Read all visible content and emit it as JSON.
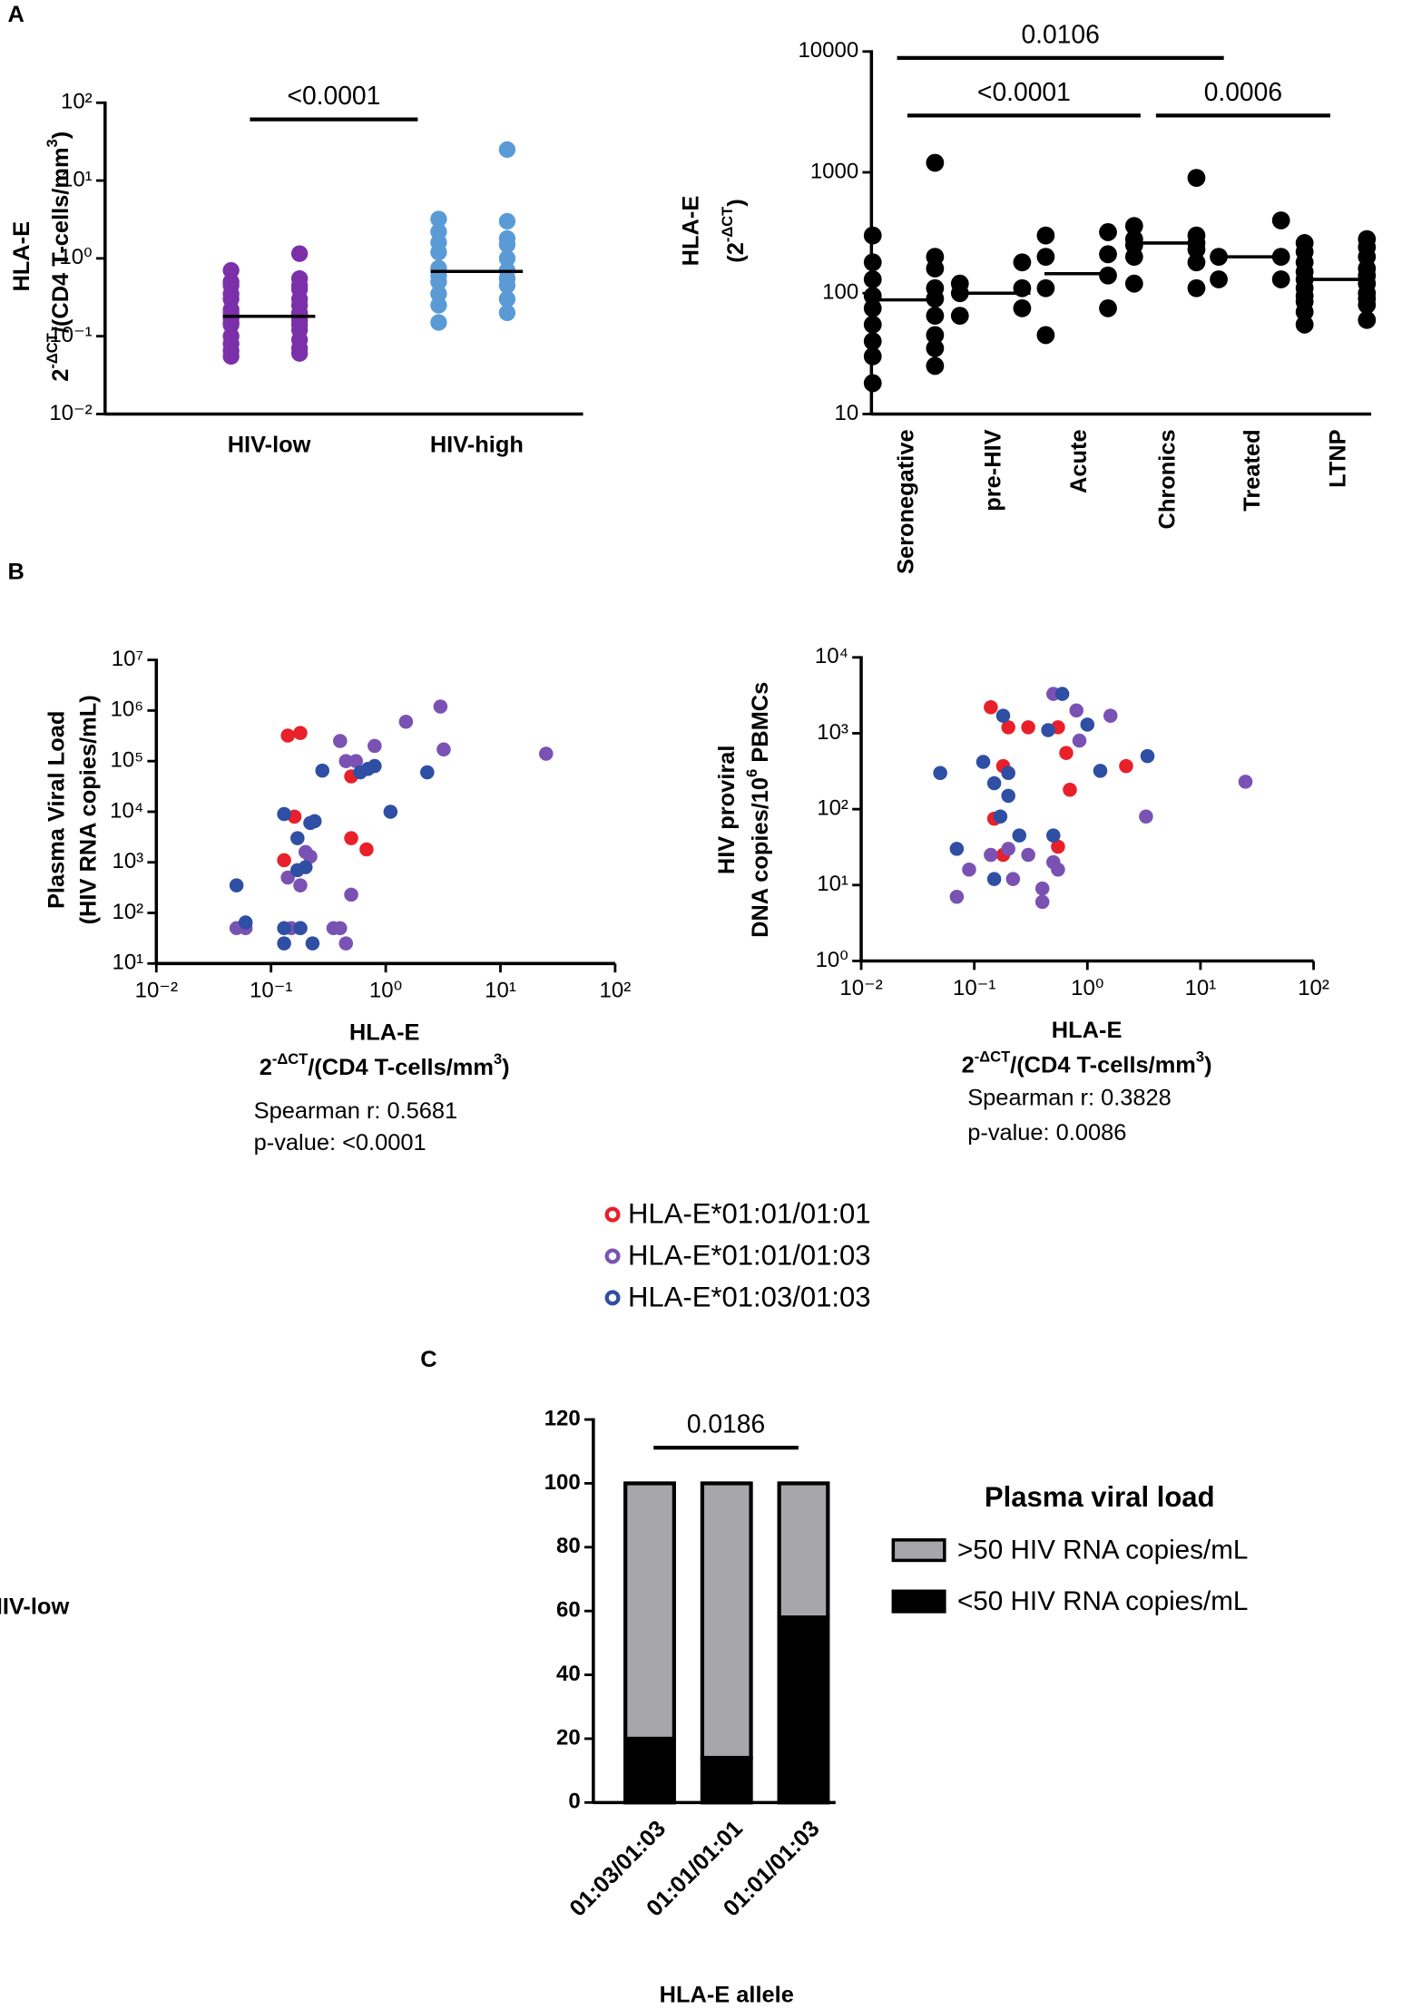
{
  "panels": [
    "A",
    "B",
    "C"
  ],
  "chart_data": [
    {
      "type": "strip",
      "ylabel": [
        "HLA-E",
        [
          {
            "text": "2"
          },
          {
            "text": "-ΔCT",
            "sup": true
          },
          {
            "text": "/(CD4  T-cells/mm"
          },
          {
            "text": "3",
            "sup": true
          },
          {
            "text": ")"
          }
        ]
      ],
      "categories": [
        "HIV-low",
        "HIV-high"
      ],
      "colors": [
        "#7b2fa8",
        "#5b9bd5"
      ],
      "values": [
        [
          1.15,
          0.7,
          0.55,
          0.5,
          0.45,
          0.45,
          0.4,
          0.35,
          0.3,
          0.3,
          0.25,
          0.22,
          0.2,
          0.2,
          0.19,
          0.18,
          0.18,
          0.17,
          0.16,
          0.15,
          0.14,
          0.14,
          0.12,
          0.1,
          0.09,
          0.08,
          0.07,
          0.065,
          0.06,
          0.055
        ],
        [
          25,
          3.2,
          3.0,
          2.2,
          1.8,
          1.6,
          1.5,
          1.2,
          1.0,
          0.75,
          0.7,
          0.6,
          0.55,
          0.5,
          0.45,
          0.35,
          0.3,
          0.25,
          0.2,
          0.15
        ]
      ],
      "medians": [
        0.18,
        0.68
      ],
      "ylog": true,
      "ylim": [
        0.01,
        100
      ],
      "yticks": [
        {
          "value": 0.01,
          "label": "10⁻²"
        },
        {
          "value": 0.1,
          "label": "10⁻¹"
        },
        {
          "value": 1,
          "label": "10⁰"
        },
        {
          "value": 10,
          "label": "10¹"
        },
        {
          "value": 100,
          "label": "10²"
        }
      ],
      "significance": [
        {
          "label": "<0.0001",
          "from": 0,
          "to": 1
        }
      ]
    },
    {
      "type": "strip",
      "ylabel": [
        "HLA-E",
        [
          {
            "text": "(2"
          },
          {
            "text": "-ΔCT",
            "sup": true
          },
          {
            "text": ")"
          }
        ]
      ],
      "categories": [
        "Seronegative",
        "pre-HIV",
        "Acute",
        "Chronics",
        "Treated",
        "LTNP"
      ],
      "color": "#000000",
      "values": [
        [
          1200,
          300,
          200,
          180,
          160,
          130,
          110,
          95,
          90,
          75,
          65,
          55,
          45,
          40,
          35,
          30,
          25,
          18
        ],
        [
          180,
          120,
          110,
          100,
          75,
          65
        ],
        [
          320,
          300,
          210,
          200,
          140,
          110,
          75,
          45
        ],
        [
          900,
          360,
          300,
          280,
          260,
          250,
          230,
          200,
          180,
          120,
          110
        ],
        [
          400,
          200,
          200,
          130,
          130
        ],
        [
          280,
          260,
          240,
          220,
          200,
          180,
          160,
          150,
          140,
          130,
          120,
          110,
          100,
          95,
          90,
          85,
          80,
          70,
          60,
          55
        ]
      ],
      "medians": [
        88,
        100,
        145,
        260,
        200,
        130
      ],
      "ylog": true,
      "ylim": [
        10,
        10000
      ],
      "yticks": [
        10,
        100,
        1000,
        10000
      ],
      "significance": [
        {
          "label": "0.0106",
          "from": 0,
          "to": 4
        },
        {
          "label": "<0.0001",
          "from": 0,
          "to": 3
        },
        {
          "label": "0.0006",
          "from": 3,
          "to": 5
        }
      ]
    },
    {
      "type": "scatter",
      "ylabel": [
        "Plasma Viral Load",
        "(HIV RNA copies/mL)"
      ],
      "xlabel": [
        "HLA-E",
        [
          {
            "text": "2"
          },
          {
            "text": "-ΔCT",
            "sup": true
          },
          {
            "text": "/(CD4  T-cells/mm"
          },
          {
            "text": "3",
            "sup": true
          },
          {
            "text": ")"
          }
        ]
      ],
      "annotations": [
        "Spearman r: 0.5681",
        "p-value:  <0.0001"
      ],
      "xlog": true,
      "xlim": [
        0.01,
        100
      ],
      "xticks": [
        {
          "value": 0.01,
          "label": "10⁻²"
        },
        {
          "value": 0.1,
          "label": "10⁻¹"
        },
        {
          "value": 1,
          "label": "10⁰"
        },
        {
          "value": 10,
          "label": "10¹"
        },
        {
          "value": 100,
          "label": "10²"
        }
      ],
      "ylog": true,
      "ylim": [
        10,
        10000000
      ],
      "yticks": [
        {
          "value": 10,
          "label": "10¹"
        },
        {
          "value": 100,
          "label": "10²"
        },
        {
          "value": 1000,
          "label": "10³"
        },
        {
          "value": 10000,
          "label": "10⁴"
        },
        {
          "value": 100000,
          "label": "10⁵"
        },
        {
          "value": 1000000,
          "label": "10⁶"
        },
        {
          "value": 10000000,
          "label": "10⁷"
        }
      ],
      "series": [
        {
          "name": "HLA-E*01:01/01:01",
          "color": "#e8202a",
          "x": [
            0.14,
            0.18,
            0.16,
            0.5,
            0.5,
            0.68,
            0.13
          ],
          "values": [
            320000,
            360000,
            8000,
            50000,
            3000,
            1800,
            1100
          ]
        },
        {
          "name": "HLA-E*01:01/01:03",
          "color": "#7a52b3",
          "x": [
            0.4,
            0.45,
            0.55,
            0.8,
            1.5,
            3,
            3.2,
            25,
            0.14,
            0.18,
            0.2,
            0.5,
            0.06,
            0.05,
            0.15,
            0.18,
            0.35,
            0.4,
            0.45,
            0.22
          ],
          "values": [
            250000,
            100000,
            100000,
            200000,
            600000,
            1200000,
            170000,
            140000,
            500,
            350,
            1600,
            230,
            50,
            50,
            50,
            50,
            50,
            50,
            25,
            1300
          ]
        },
        {
          "name": "HLA-E*01:03/01:03",
          "color": "#2e4fa3",
          "x": [
            0.28,
            0.6,
            0.7,
            0.8,
            2.3,
            1.1,
            0.13,
            0.17,
            0.22,
            0.24,
            0.2,
            0.17,
            0.05,
            0.06,
            0.13,
            0.18,
            0.13,
            0.23
          ],
          "values": [
            65000,
            60000,
            70000,
            80000,
            60000,
            10000,
            9000,
            3000,
            6000,
            6500,
            800,
            700,
            350,
            65,
            50,
            50,
            25,
            25
          ]
        }
      ]
    },
    {
      "type": "scatter",
      "ylabel": [
        "HIV proviral",
        [
          {
            "text": "DNA copies/10"
          },
          {
            "text": "6",
            "sup": true
          },
          {
            "text": " PBMCs"
          }
        ]
      ],
      "xlabel": [
        "HLA-E",
        [
          {
            "text": "2"
          },
          {
            "text": "-ΔCT",
            "sup": true
          },
          {
            "text": "/(CD4  T-cells/mm"
          },
          {
            "text": "3",
            "sup": true
          },
          {
            "text": ")"
          }
        ]
      ],
      "annotations": [
        "Spearman r: 0.3828",
        "p-value:  0.0086"
      ],
      "xlog": true,
      "xlim": [
        0.01,
        100
      ],
      "xticks": [
        {
          "value": 0.01,
          "label": "10⁻²"
        },
        {
          "value": 0.1,
          "label": "10⁻¹"
        },
        {
          "value": 1,
          "label": "10⁰"
        },
        {
          "value": 10,
          "label": "10¹"
        },
        {
          "value": 100,
          "label": "10²"
        }
      ],
      "ylog": true,
      "ylim": [
        1,
        10000
      ],
      "yticks": [
        {
          "value": 1,
          "label": "10⁰"
        },
        {
          "value": 10,
          "label": "10¹"
        },
        {
          "value": 100,
          "label": "10²"
        },
        {
          "value": 1000,
          "label": "10³"
        },
        {
          "value": 10000,
          "label": "10⁴"
        }
      ],
      "series": [
        {
          "color": "#e8202a",
          "x": [
            0.14,
            0.2,
            0.3,
            0.55,
            0.65,
            2.2,
            0.7,
            0.15,
            0.18,
            0.18,
            0.55
          ],
          "values": [
            2200,
            1200,
            1200,
            1200,
            550,
            370,
            180,
            75,
            370,
            25,
            32
          ]
        },
        {
          "color": "#7a52b3",
          "x": [
            0.5,
            0.8,
            1.6,
            0.85,
            3.3,
            25,
            0.07,
            0.09,
            0.14,
            0.22,
            0.4,
            0.4,
            0.5,
            0.55,
            0.2,
            0.3
          ],
          "values": [
            3300,
            2000,
            1700,
            800,
            80,
            230,
            7,
            16,
            25,
            12,
            6,
            9,
            20,
            16,
            30,
            25
          ]
        },
        {
          "color": "#2e4fa3",
          "x": [
            0.6,
            0.18,
            1,
            0.45,
            1.3,
            3.4,
            0.05,
            0.12,
            0.2,
            0.15,
            0.2,
            0.17,
            0.25,
            0.5,
            0.07,
            0.15
          ],
          "values": [
            3300,
            1700,
            1300,
            1100,
            320,
            500,
            300,
            420,
            300,
            220,
            150,
            80,
            45,
            45,
            30,
            12
          ]
        }
      ]
    },
    {
      "type": "stacked_bar",
      "ylabel": [
        "% of  HIV-low"
      ],
      "xlabel": [
        "HLA-E allele"
      ],
      "categories": [
        "01:03/01:03",
        "01:01/01:01",
        "01:01/01:03"
      ],
      "legend_title": "Plasma viral load",
      "series": [
        {
          "name": ">50 HIV RNA copies/mL",
          "color": "#a7a7aa",
          "values": [
            80,
            86,
            42
          ]
        },
        {
          "name": "<50 HIV RNA copies/mL",
          "color": "#000000",
          "values": [
            20,
            14,
            58
          ]
        }
      ],
      "ylim": [
        0,
        120
      ],
      "yticks": [
        0,
        20,
        40,
        60,
        80,
        100,
        120
      ],
      "significance": [
        {
          "label": "0.0186",
          "from": 0,
          "to": 2
        }
      ]
    }
  ]
}
